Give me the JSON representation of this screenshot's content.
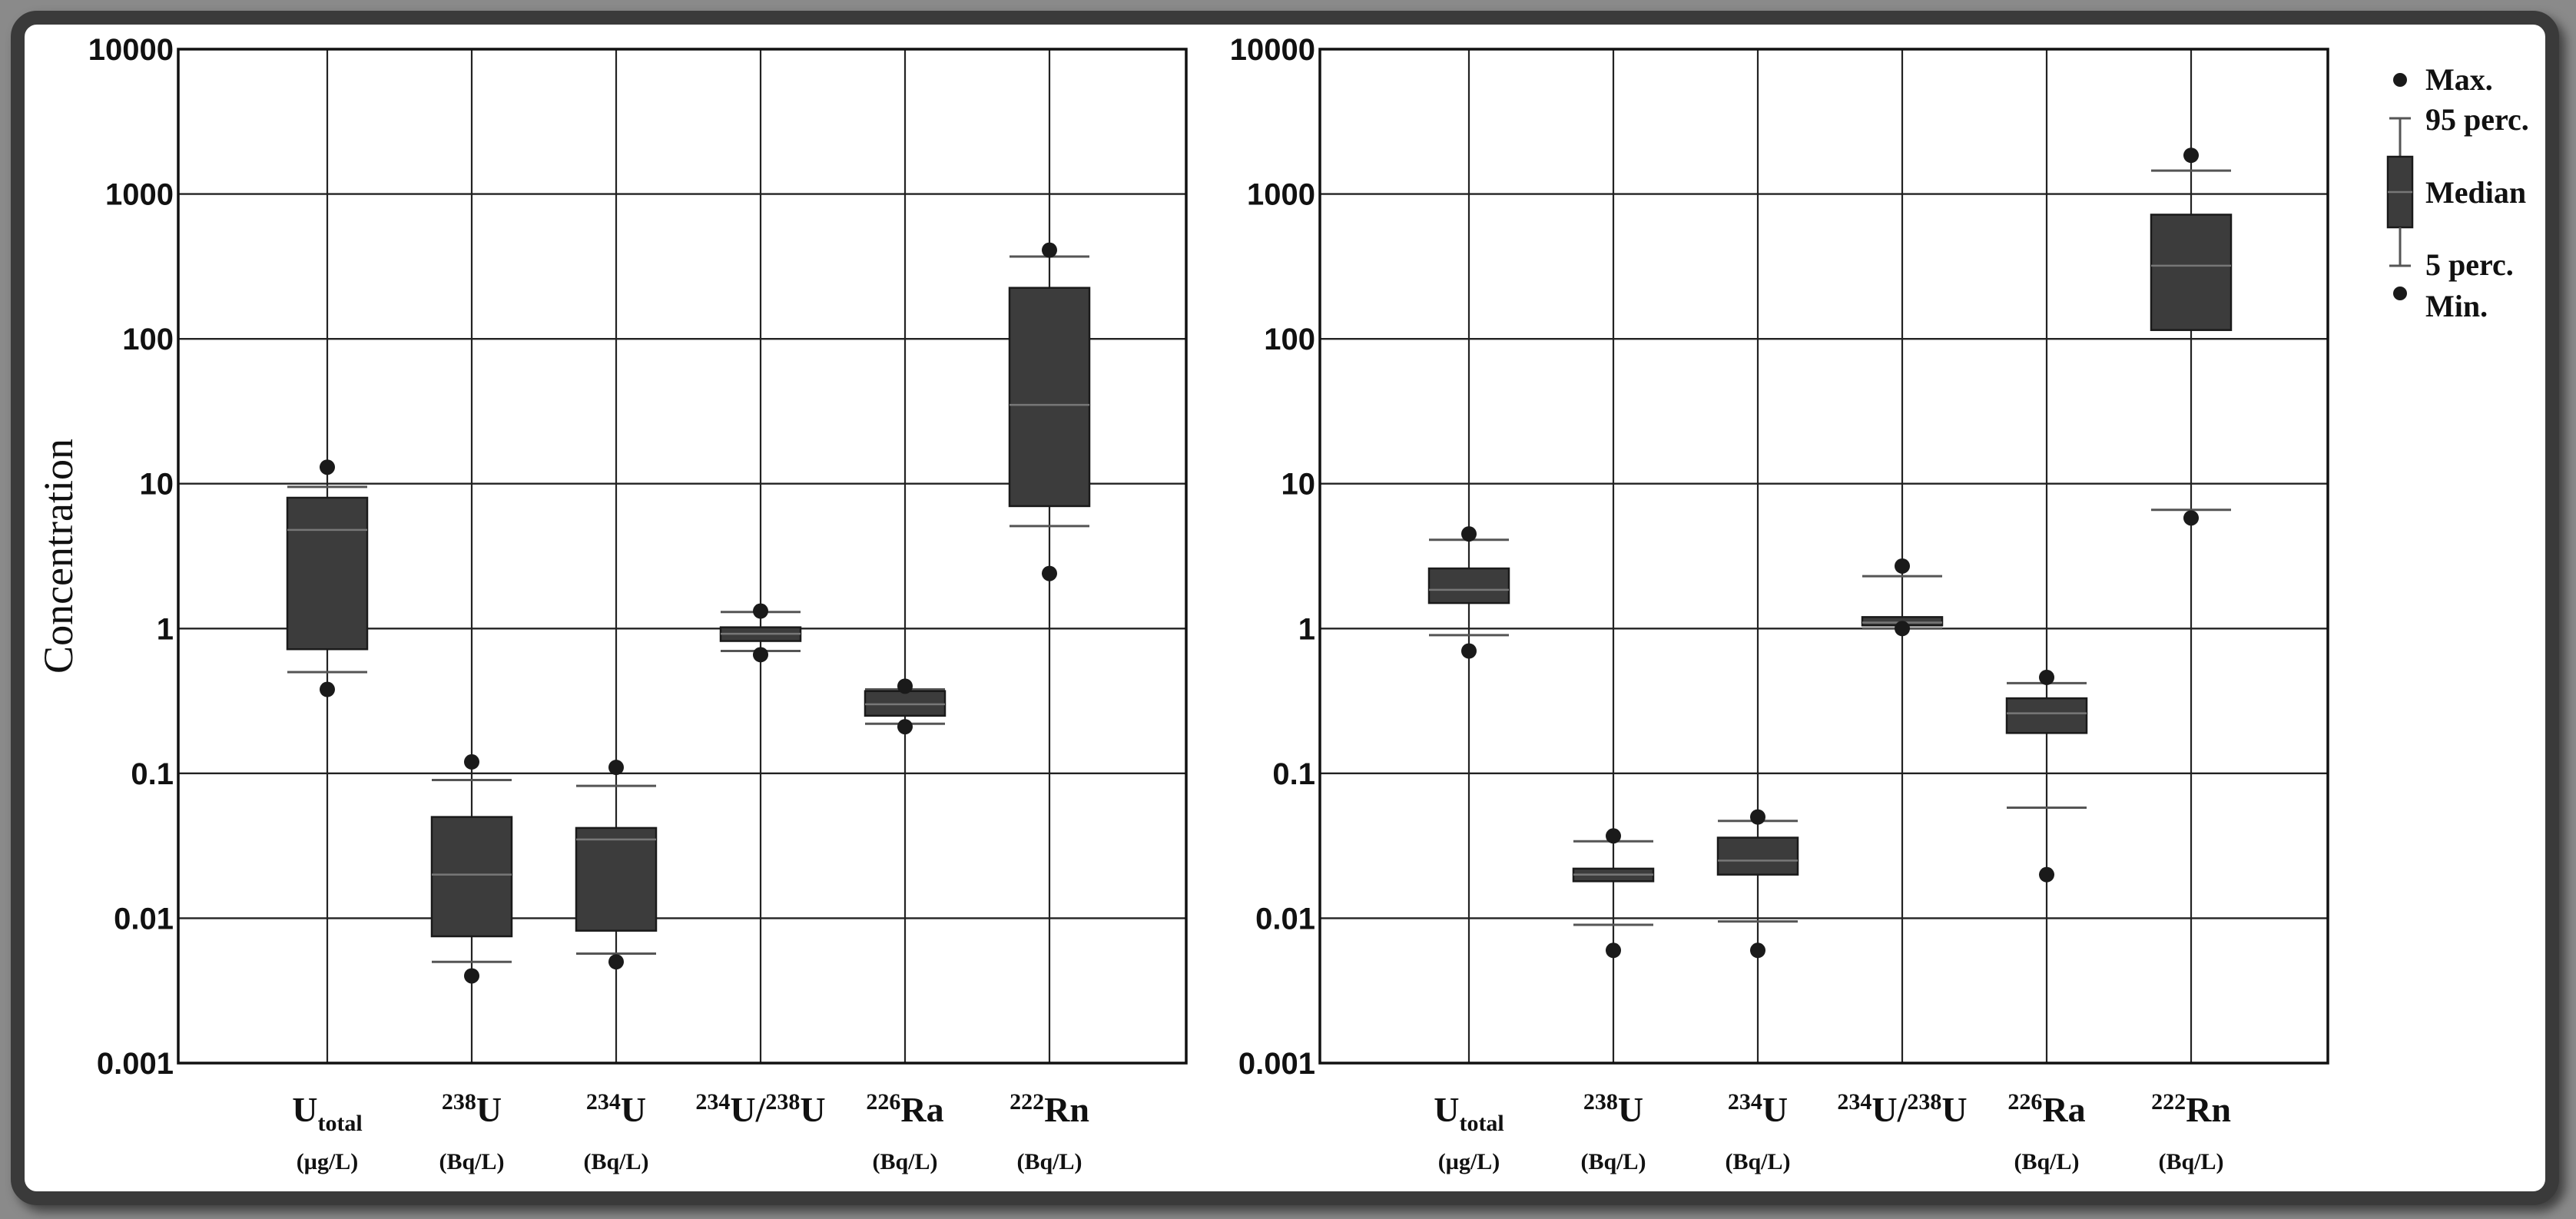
{
  "chart_data": [
    {
      "type": "box",
      "ylabel": "Concentration",
      "yscale": "log",
      "ylim": [
        0.001,
        10000
      ],
      "yticks": [
        "0.001",
        "0.01",
        "0.1",
        "1",
        "10",
        "100",
        "1000",
        "10000"
      ],
      "grid": true,
      "categories": [
        {
          "pre": "",
          "main": "U",
          "sub": "total",
          "sup": "",
          "main2": "",
          "unit": "(µg/L)"
        },
        {
          "pre": "238",
          "main": "U",
          "sub": "",
          "sup": "",
          "main2": "",
          "unit": "(Bq/L)"
        },
        {
          "pre": "234",
          "main": "U",
          "sub": "",
          "sup": "",
          "main2": "",
          "unit": "(Bq/L)"
        },
        {
          "pre": "234",
          "main": "U/",
          "sub": "",
          "sup": "238",
          "main2": "U",
          "unit": ""
        },
        {
          "pre": "226",
          "main": "Ra",
          "sub": "",
          "sup": "",
          "main2": "",
          "unit": "(Bq/L)"
        },
        {
          "pre": "222",
          "main": "Rn",
          "sub": "",
          "sup": "",
          "main2": "",
          "unit": "(Bq/L)"
        }
      ],
      "boxes": [
        {
          "min": 0.38,
          "p5": 0.5,
          "q1": 0.72,
          "median": 4.8,
          "q3": 8,
          "p95": 9.5,
          "max": 13
        },
        {
          "min": 0.004,
          "p5": 0.005,
          "q1": 0.0075,
          "median": 0.02,
          "q3": 0.05,
          "p95": 0.09,
          "max": 0.12
        },
        {
          "min": 0.005,
          "p5": 0.0057,
          "q1": 0.0082,
          "median": 0.035,
          "q3": 0.042,
          "p95": 0.082,
          "max": 0.11
        },
        {
          "min": 0.66,
          "p5": 0.7,
          "q1": 0.82,
          "median": 0.92,
          "q3": 1.02,
          "p95": 1.3,
          "max": 1.32
        },
        {
          "min": 0.21,
          "p5": 0.22,
          "q1": 0.25,
          "median": 0.3,
          "q3": 0.37,
          "p95": 0.38,
          "max": 0.4
        },
        {
          "min": 2.4,
          "p5": 5.1,
          "q1": 7,
          "median": 35,
          "q3": 225,
          "p95": 370,
          "max": 410
        }
      ]
    },
    {
      "type": "box",
      "yscale": "log",
      "ylim": [
        0.001,
        10000
      ],
      "yticks": [
        "0.001",
        "0.01",
        "0.1",
        "1",
        "10",
        "100",
        "1000",
        "10000"
      ],
      "grid": true,
      "categories": [
        {
          "pre": "",
          "main": "U",
          "sub": "total",
          "sup": "",
          "main2": "",
          "unit": "(µg/L)"
        },
        {
          "pre": "238",
          "main": "U",
          "sub": "",
          "sup": "",
          "main2": "",
          "unit": "(Bq/L)"
        },
        {
          "pre": "234",
          "main": "U",
          "sub": "",
          "sup": "",
          "main2": "",
          "unit": "(Bq/L)"
        },
        {
          "pre": "234",
          "main": "U/",
          "sub": "",
          "sup": "238",
          "main2": "U",
          "unit": ""
        },
        {
          "pre": "226",
          "main": "Ra",
          "sub": "",
          "sup": "",
          "main2": "",
          "unit": "(Bq/L)"
        },
        {
          "pre": "222",
          "main": "Rn",
          "sub": "",
          "sup": "",
          "main2": "",
          "unit": "(Bq/L)"
        }
      ],
      "boxes": [
        {
          "min": 0.7,
          "p5": 0.9,
          "q1": 1.5,
          "median": 1.85,
          "q3": 2.6,
          "p95": 4.1,
          "max": 4.5
        },
        {
          "min": 0.006,
          "p5": 0.009,
          "q1": 0.018,
          "median": 0.02,
          "q3": 0.022,
          "p95": 0.034,
          "max": 0.037
        },
        {
          "min": 0.006,
          "p5": 0.0095,
          "q1": 0.02,
          "median": 0.025,
          "q3": 0.036,
          "p95": 0.047,
          "max": 0.05
        },
        {
          "min": 1.0,
          "p5": 1.0,
          "q1": 1.05,
          "median": 1.1,
          "q3": 1.2,
          "p95": 2.3,
          "max": 2.7
        },
        {
          "min": 0.02,
          "p5": 0.058,
          "q1": 0.19,
          "median": 0.26,
          "q3": 0.33,
          "p95": 0.42,
          "max": 0.46
        },
        {
          "min": 5.8,
          "p5": 6.6,
          "q1": 115,
          "median": 320,
          "q3": 720,
          "p95": 1450,
          "max": 1850
        }
      ]
    }
  ],
  "legend": {
    "max": "Max.",
    "p95": "95 perc.",
    "median": "Median",
    "p5": "5 perc.",
    "min": "Min."
  }
}
